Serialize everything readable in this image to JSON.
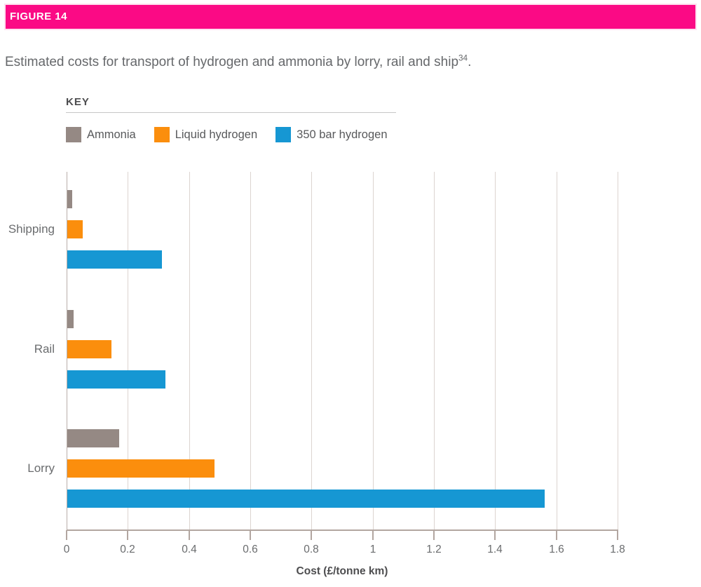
{
  "figure": {
    "label": "FIGURE 14"
  },
  "title": {
    "text": "Estimated costs for transport of hydrogen and ammonia by lorry, rail and ship",
    "superscript": "34",
    "suffix": "."
  },
  "key": {
    "heading": "KEY",
    "items": [
      {
        "label": "Ammonia",
        "color": "#958984"
      },
      {
        "label": "Liquid hydrogen",
        "color": "#fb8e0d"
      },
      {
        "label": "350 bar hydrogen",
        "color": "#1697d3"
      }
    ]
  },
  "chart_data": {
    "type": "bar",
    "orientation": "horizontal",
    "title": "Estimated costs for transport of hydrogen and ammonia by lorry, rail and ship",
    "xlabel": "Cost (£/tonne km)",
    "ylabel": "",
    "xlim": [
      0,
      1.8
    ],
    "grid": true,
    "legend_position": "top",
    "categories": [
      "Shipping",
      "Rail",
      "Lorry"
    ],
    "series": [
      {
        "name": "Ammonia",
        "color": "#958984",
        "values": [
          0.015,
          0.02,
          0.17
        ]
      },
      {
        "name": "Liquid hydrogen",
        "color": "#fb8e0d",
        "values": [
          0.05,
          0.145,
          0.48
        ]
      },
      {
        "name": "350 bar hydrogen",
        "color": "#1697d3",
        "values": [
          0.31,
          0.32,
          1.56
        ]
      }
    ],
    "xticks": {
      "values": [
        0,
        0.2,
        0.4,
        0.6,
        0.8,
        1,
        1.2,
        1.4,
        1.6,
        1.8
      ],
      "labels": [
        "0",
        "0.2",
        "0.4",
        "0.6",
        "0.8",
        "1",
        "1.2",
        "1.4",
        "1.6",
        "1.8"
      ]
    }
  },
  "colors": {
    "figure_bar": "#fb0a85",
    "gridline": "#dcd4d0",
    "axis": "#b2a6a0",
    "text_primary": "#4d4d4f",
    "text_secondary": "#6a6c6e"
  }
}
